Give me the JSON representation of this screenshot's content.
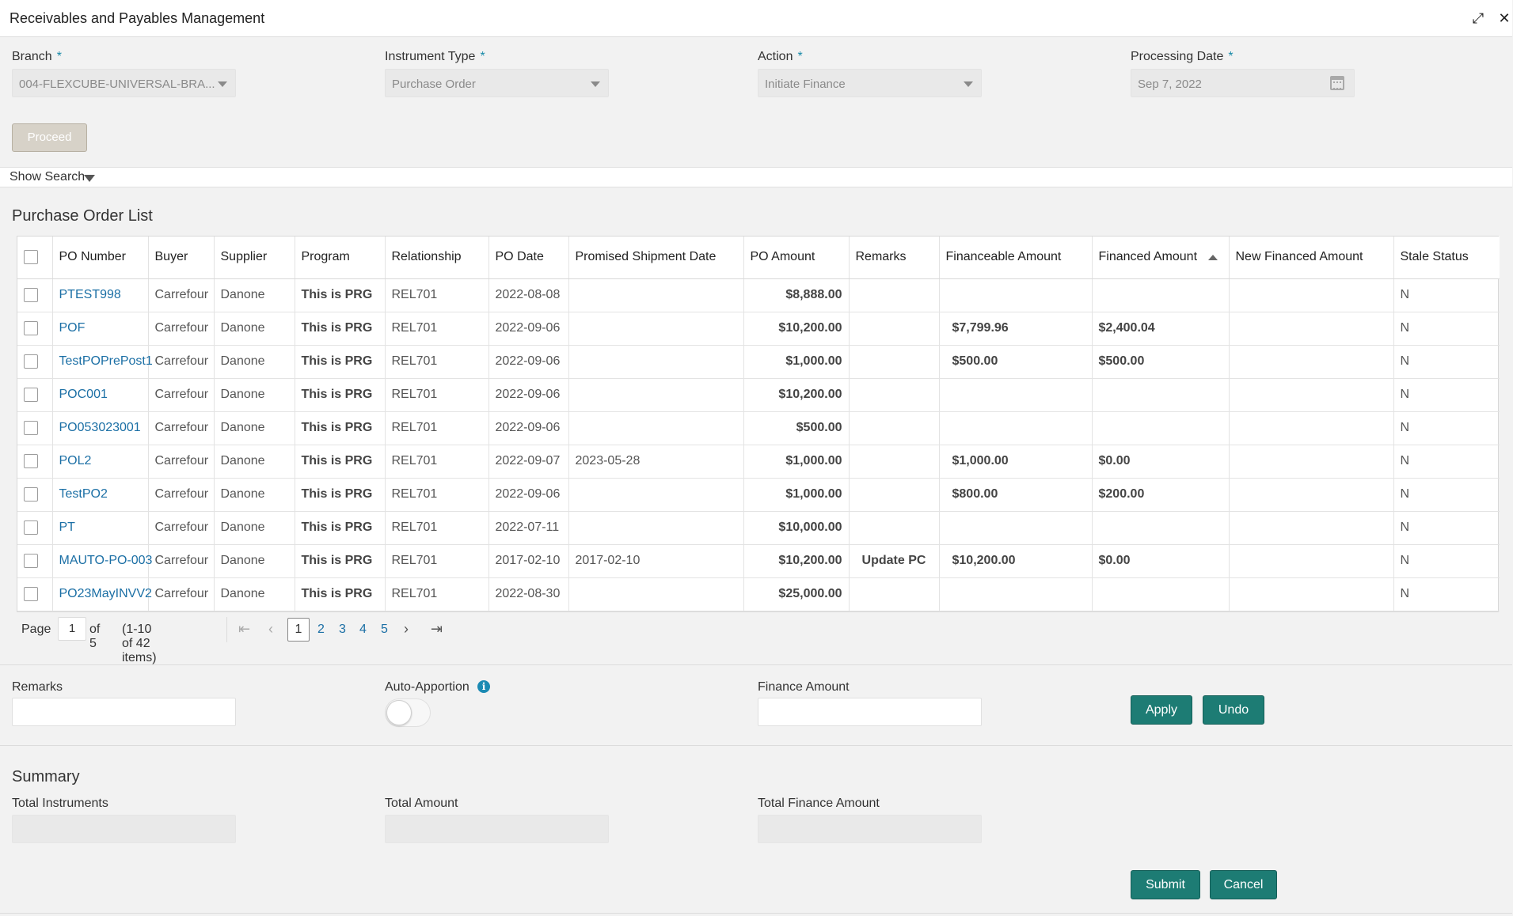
{
  "window": {
    "title": "Receivables and Payables Management"
  },
  "filters": {
    "branch": {
      "label": "Branch",
      "value": "004-FLEXCUBE-UNIVERSAL-BRA..."
    },
    "instrument_type": {
      "label": "Instrument Type",
      "value": "Purchase Order"
    },
    "action": {
      "label": "Action",
      "value": "Initiate Finance"
    },
    "processing_date": {
      "label": "Processing Date",
      "value": "Sep 7, 2022"
    },
    "required_mark": "*",
    "proceed_label": "Proceed",
    "show_search_label": "Show Search"
  },
  "list": {
    "title": "Purchase Order List",
    "columns": [
      "PO Number",
      "Buyer",
      "Supplier",
      "Program",
      "Relationship",
      "PO Date",
      "Promised Shipment Date",
      "PO Amount",
      "Remarks",
      "Financeable Amount",
      "Financed Amount",
      "New Financed Amount",
      "Stale Status"
    ],
    "rows": [
      [
        "PTEST998",
        "Carrefour",
        "Danone",
        "This is PRG",
        "REL701",
        "2022-08-08",
        "",
        "$8,888.00",
        "",
        "",
        "",
        "",
        "N"
      ],
      [
        "POF",
        "Carrefour",
        "Danone",
        "This is PRG",
        "REL701",
        "2022-09-06",
        "",
        "$10,200.00",
        "",
        "$7,799.96",
        "$2,400.04",
        "",
        "N"
      ],
      [
        "TestPOPrePost1",
        "Carrefour",
        "Danone",
        "This is PRG",
        "REL701",
        "2022-09-06",
        "",
        "$1,000.00",
        "",
        "$500.00",
        "$500.00",
        "",
        "N"
      ],
      [
        "POC001",
        "Carrefour",
        "Danone",
        "This is PRG",
        "REL701",
        "2022-09-06",
        "",
        "$10,200.00",
        "",
        "",
        "",
        "",
        "N"
      ],
      [
        "PO053023001",
        "Carrefour",
        "Danone",
        "This is PRG",
        "REL701",
        "2022-09-06",
        "",
        "$500.00",
        "",
        "",
        "",
        "",
        "N"
      ],
      [
        "POL2",
        "Carrefour",
        "Danone",
        "This is PRG",
        "REL701",
        "2022-09-07",
        "2023-05-28",
        "$1,000.00",
        "",
        "$1,000.00",
        "$0.00",
        "",
        "N"
      ],
      [
        "TestPO2",
        "Carrefour",
        "Danone",
        "This is PRG",
        "REL701",
        "2022-09-06",
        "",
        "$1,000.00",
        "",
        "$800.00",
        "$200.00",
        "",
        "N"
      ],
      [
        "PT",
        "Carrefour",
        "Danone",
        "This is PRG",
        "REL701",
        "2022-07-11",
        "",
        "$10,000.00",
        "",
        "",
        "",
        "",
        "N"
      ],
      [
        "MAUTO-PO-003",
        "Carrefour",
        "Danone",
        "This is PRG",
        "REL701",
        "2017-02-10",
        "2017-02-10",
        "$10,200.00",
        "Update PC",
        "$10,200.00",
        "$0.00",
        "",
        "N"
      ],
      [
        "PO23MayINVV2",
        "Carrefour",
        "Danone",
        "This is PRG",
        "REL701",
        "2022-08-30",
        "",
        "$25,000.00",
        "",
        "",
        "",
        "",
        "N"
      ]
    ]
  },
  "pagination": {
    "page_label": "Page",
    "current_page": "1",
    "of_label": "of 5",
    "items_label": "(1-10 of 42 items)",
    "pages": [
      "1",
      "2",
      "3",
      "4",
      "5"
    ]
  },
  "apportion": {
    "remarks_label": "Remarks",
    "auto_apportion_label": "Auto-Apportion",
    "auto_apportion_on": false,
    "finance_amount_label": "Finance Amount",
    "apply_label": "Apply",
    "undo_label": "Undo"
  },
  "summary": {
    "title": "Summary",
    "total_instruments_label": "Total Instruments",
    "total_amount_label": "Total Amount",
    "total_finance_amount_label": "Total Finance Amount",
    "submit_label": "Submit",
    "cancel_label": "Cancel"
  },
  "colors": {
    "accent": "#1d7c74",
    "link": "#1b6fa5",
    "required": "#1a8aa8"
  }
}
